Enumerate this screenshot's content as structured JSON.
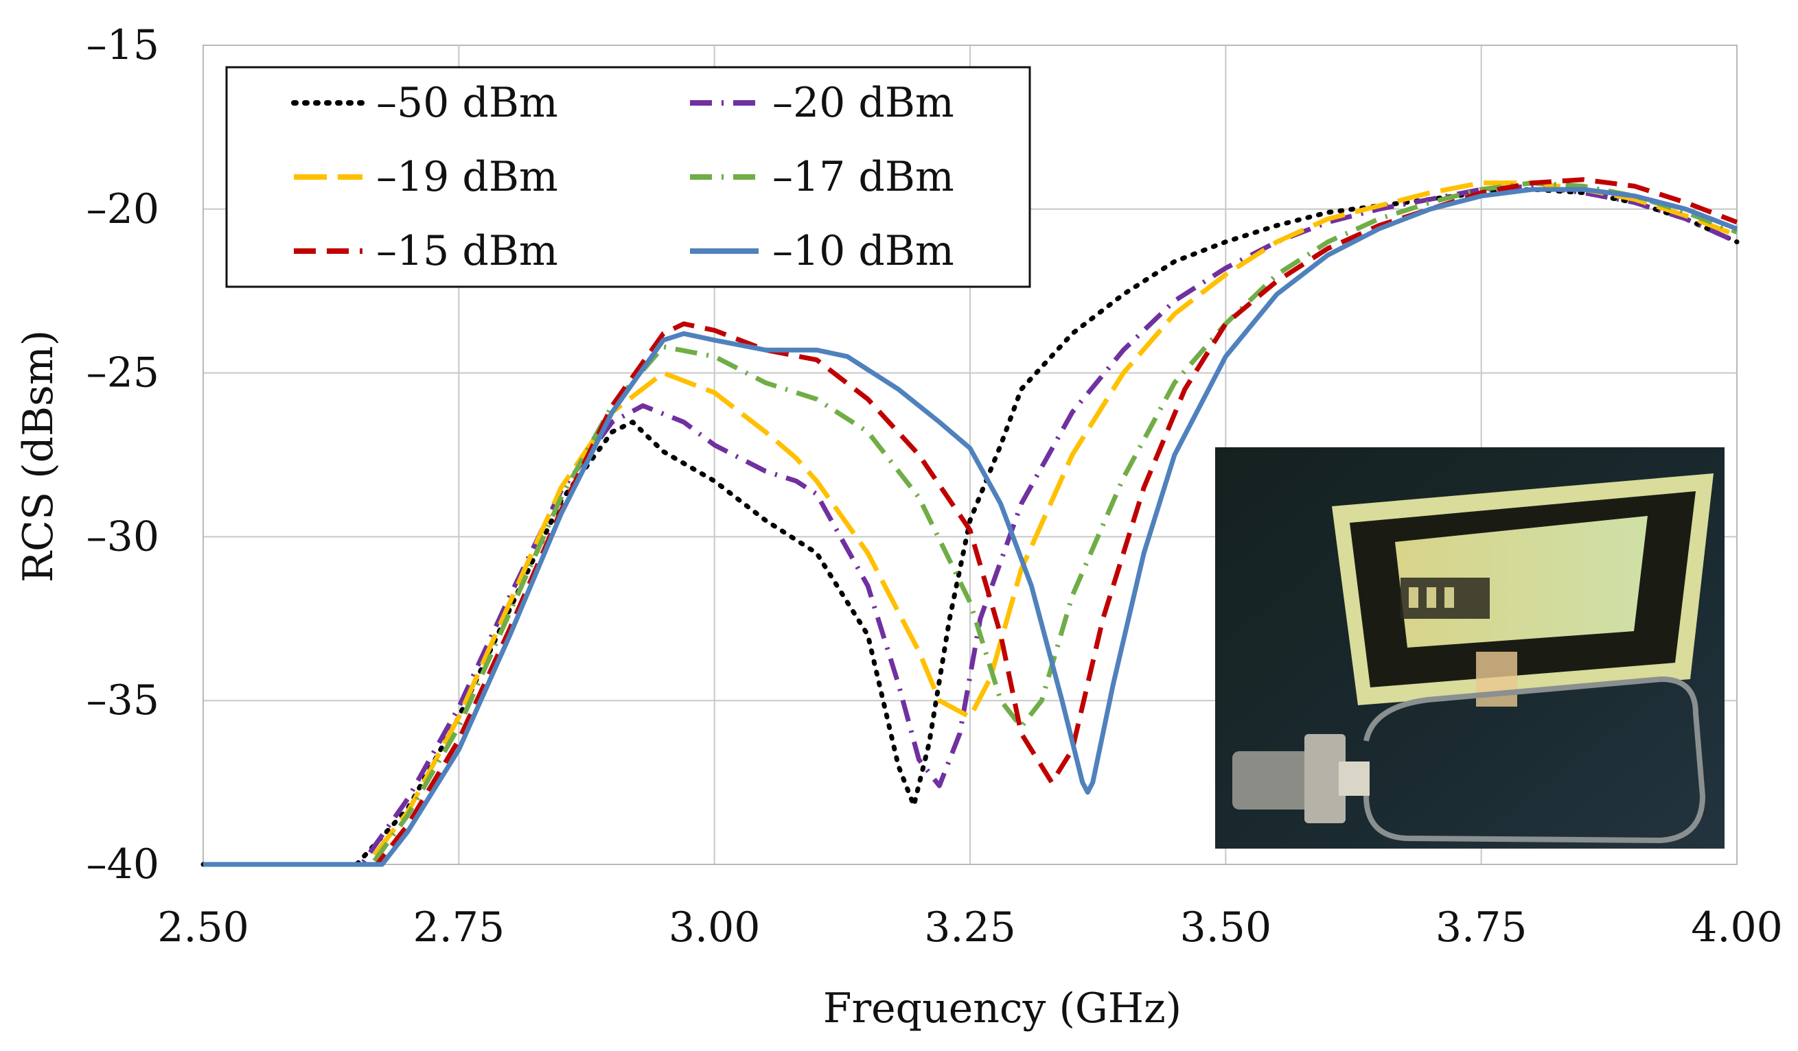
{
  "chart_data": {
    "type": "line",
    "title": "",
    "xlabel": "Frequency (GHz)",
    "ylabel": "RCS (dBsm)",
    "xlim": [
      2.5,
      4.0
    ],
    "ylim": [
      -40,
      -15
    ],
    "x_ticks": [
      2.5,
      2.75,
      3.0,
      3.25,
      3.5,
      3.75,
      4.0
    ],
    "x_tick_labels": [
      "2.50",
      "2.75",
      "3.00",
      "3.25",
      "3.50",
      "3.75",
      "4.00"
    ],
    "y_ticks": [
      -15,
      -20,
      -25,
      -30,
      -35,
      -40
    ],
    "y_tick_labels": [
      "–15",
      "–20",
      "–25",
      "–30",
      "–35",
      "–40"
    ],
    "grid": true,
    "legend_position": "top-left",
    "series": [
      {
        "name": "–50 dBm",
        "color": "#000000",
        "dash": "dot",
        "points": [
          [
            2.5,
            -40
          ],
          [
            2.65,
            -40
          ],
          [
            2.7,
            -38.3
          ],
          [
            2.75,
            -35.5
          ],
          [
            2.8,
            -32.2
          ],
          [
            2.85,
            -28.9
          ],
          [
            2.9,
            -26.8
          ],
          [
            2.92,
            -26.5
          ],
          [
            2.95,
            -27.4
          ],
          [
            3.0,
            -28.3
          ],
          [
            3.05,
            -29.5
          ],
          [
            3.1,
            -30.5
          ],
          [
            3.15,
            -33.0
          ],
          [
            3.18,
            -37.0
          ],
          [
            3.195,
            -38.2
          ],
          [
            3.21,
            -36.3
          ],
          [
            3.23,
            -32.5
          ],
          [
            3.25,
            -29.5
          ],
          [
            3.28,
            -27.2
          ],
          [
            3.3,
            -25.5
          ],
          [
            3.35,
            -23.8
          ],
          [
            3.4,
            -22.6
          ],
          [
            3.45,
            -21.6
          ],
          [
            3.5,
            -21.0
          ],
          [
            3.55,
            -20.5
          ],
          [
            3.6,
            -20.1
          ],
          [
            3.65,
            -19.9
          ],
          [
            3.7,
            -19.7
          ],
          [
            3.75,
            -19.5
          ],
          [
            3.8,
            -19.4
          ],
          [
            3.85,
            -19.5
          ],
          [
            3.9,
            -19.8
          ],
          [
            3.95,
            -20.3
          ],
          [
            4.0,
            -21.0
          ]
        ]
      },
      {
        "name": "–20 dBm",
        "color": "#7030a0",
        "dash": "dashdot",
        "points": [
          [
            2.5,
            -40
          ],
          [
            2.655,
            -40
          ],
          [
            2.7,
            -38.0
          ],
          [
            2.75,
            -35.2
          ],
          [
            2.8,
            -31.8
          ],
          [
            2.85,
            -28.6
          ],
          [
            2.9,
            -26.5
          ],
          [
            2.93,
            -26.0
          ],
          [
            2.97,
            -26.5
          ],
          [
            3.0,
            -27.2
          ],
          [
            3.05,
            -28.0
          ],
          [
            3.08,
            -28.3
          ],
          [
            3.1,
            -28.7
          ],
          [
            3.15,
            -31.5
          ],
          [
            3.18,
            -34.5
          ],
          [
            3.2,
            -36.8
          ],
          [
            3.22,
            -37.6
          ],
          [
            3.24,
            -36.0
          ],
          [
            3.26,
            -32.5
          ],
          [
            3.3,
            -29.0
          ],
          [
            3.35,
            -26.2
          ],
          [
            3.4,
            -24.3
          ],
          [
            3.45,
            -22.8
          ],
          [
            3.5,
            -21.8
          ],
          [
            3.55,
            -21.0
          ],
          [
            3.6,
            -20.4
          ],
          [
            3.65,
            -20.0
          ],
          [
            3.7,
            -19.7
          ],
          [
            3.75,
            -19.4
          ],
          [
            3.8,
            -19.3
          ],
          [
            3.85,
            -19.5
          ],
          [
            3.9,
            -19.8
          ],
          [
            3.95,
            -20.3
          ],
          [
            4.0,
            -21.0
          ]
        ]
      },
      {
        "name": "–19 dBm",
        "color": "#ffc000",
        "dash": "longdash",
        "points": [
          [
            2.5,
            -40
          ],
          [
            2.66,
            -40
          ],
          [
            2.7,
            -38.4
          ],
          [
            2.75,
            -35.5
          ],
          [
            2.8,
            -32.0
          ],
          [
            2.85,
            -28.5
          ],
          [
            2.9,
            -26.2
          ],
          [
            2.95,
            -25.0
          ],
          [
            3.0,
            -25.6
          ],
          [
            3.05,
            -26.8
          ],
          [
            3.08,
            -27.6
          ],
          [
            3.1,
            -28.3
          ],
          [
            3.15,
            -30.5
          ],
          [
            3.2,
            -33.5
          ],
          [
            3.22,
            -35.0
          ],
          [
            3.25,
            -35.5
          ],
          [
            3.27,
            -34.3
          ],
          [
            3.3,
            -31.0
          ],
          [
            3.35,
            -27.5
          ],
          [
            3.4,
            -25.0
          ],
          [
            3.45,
            -23.2
          ],
          [
            3.5,
            -22.0
          ],
          [
            3.55,
            -21.0
          ],
          [
            3.6,
            -20.3
          ],
          [
            3.65,
            -19.9
          ],
          [
            3.7,
            -19.5
          ],
          [
            3.75,
            -19.2
          ],
          [
            3.8,
            -19.2
          ],
          [
            3.85,
            -19.4
          ],
          [
            3.9,
            -19.7
          ],
          [
            3.95,
            -20.2
          ],
          [
            4.0,
            -20.8
          ]
        ]
      },
      {
        "name": "–17 dBm",
        "color": "#70ad47",
        "dash": "dashdot",
        "points": [
          [
            2.5,
            -40
          ],
          [
            2.665,
            -40
          ],
          [
            2.7,
            -38.5
          ],
          [
            2.75,
            -35.8
          ],
          [
            2.8,
            -32.3
          ],
          [
            2.85,
            -28.8
          ],
          [
            2.9,
            -26.0
          ],
          [
            2.95,
            -24.2
          ],
          [
            3.0,
            -24.5
          ],
          [
            3.05,
            -25.3
          ],
          [
            3.1,
            -25.8
          ],
          [
            3.15,
            -26.8
          ],
          [
            3.2,
            -28.8
          ],
          [
            3.25,
            -32.0
          ],
          [
            3.28,
            -35.0
          ],
          [
            3.3,
            -35.8
          ],
          [
            3.32,
            -35.0
          ],
          [
            3.35,
            -31.8
          ],
          [
            3.4,
            -28.2
          ],
          [
            3.45,
            -25.3
          ],
          [
            3.5,
            -23.5
          ],
          [
            3.55,
            -22.0
          ],
          [
            3.6,
            -21.0
          ],
          [
            3.65,
            -20.3
          ],
          [
            3.7,
            -19.8
          ],
          [
            3.75,
            -19.4
          ],
          [
            3.8,
            -19.2
          ],
          [
            3.85,
            -19.3
          ],
          [
            3.9,
            -19.6
          ],
          [
            3.95,
            -20.1
          ],
          [
            4.0,
            -20.7
          ]
        ]
      },
      {
        "name": "–15 dBm",
        "color": "#c00000",
        "dash": "dash",
        "points": [
          [
            2.5,
            -40
          ],
          [
            2.67,
            -40
          ],
          [
            2.7,
            -38.8
          ],
          [
            2.75,
            -36.2
          ],
          [
            2.8,
            -32.8
          ],
          [
            2.85,
            -29.2
          ],
          [
            2.9,
            -26.0
          ],
          [
            2.95,
            -23.8
          ],
          [
            2.97,
            -23.5
          ],
          [
            3.0,
            -23.7
          ],
          [
            3.05,
            -24.3
          ],
          [
            3.1,
            -24.6
          ],
          [
            3.15,
            -25.8
          ],
          [
            3.2,
            -27.5
          ],
          [
            3.25,
            -29.8
          ],
          [
            3.28,
            -33.0
          ],
          [
            3.3,
            -36.0
          ],
          [
            3.33,
            -37.5
          ],
          [
            3.35,
            -36.5
          ],
          [
            3.38,
            -32.5
          ],
          [
            3.42,
            -28.5
          ],
          [
            3.46,
            -25.5
          ],
          [
            3.5,
            -23.5
          ],
          [
            3.55,
            -22.2
          ],
          [
            3.6,
            -21.2
          ],
          [
            3.65,
            -20.5
          ],
          [
            3.7,
            -20.0
          ],
          [
            3.75,
            -19.5
          ],
          [
            3.8,
            -19.2
          ],
          [
            3.85,
            -19.1
          ],
          [
            3.9,
            -19.3
          ],
          [
            3.95,
            -19.8
          ],
          [
            4.0,
            -20.4
          ]
        ]
      },
      {
        "name": "–10 dBm",
        "color": "#4f81bd",
        "dash": "solid",
        "points": [
          [
            2.5,
            -40
          ],
          [
            2.675,
            -40
          ],
          [
            2.7,
            -39.0
          ],
          [
            2.75,
            -36.5
          ],
          [
            2.8,
            -33.0
          ],
          [
            2.85,
            -29.3
          ],
          [
            2.9,
            -26.2
          ],
          [
            2.95,
            -24.0
          ],
          [
            2.97,
            -23.8
          ],
          [
            3.0,
            -24.0
          ],
          [
            3.05,
            -24.3
          ],
          [
            3.1,
            -24.3
          ],
          [
            3.13,
            -24.5
          ],
          [
            3.18,
            -25.5
          ],
          [
            3.22,
            -26.5
          ],
          [
            3.25,
            -27.3
          ],
          [
            3.28,
            -29.0
          ],
          [
            3.31,
            -31.5
          ],
          [
            3.34,
            -35.0
          ],
          [
            3.36,
            -37.5
          ],
          [
            3.365,
            -37.8
          ],
          [
            3.37,
            -37.5
          ],
          [
            3.39,
            -34.5
          ],
          [
            3.42,
            -30.5
          ],
          [
            3.45,
            -27.5
          ],
          [
            3.5,
            -24.5
          ],
          [
            3.55,
            -22.6
          ],
          [
            3.6,
            -21.4
          ],
          [
            3.65,
            -20.6
          ],
          [
            3.7,
            -20.0
          ],
          [
            3.75,
            -19.6
          ],
          [
            3.8,
            -19.4
          ],
          [
            3.85,
            -19.4
          ],
          [
            3.9,
            -19.6
          ],
          [
            3.95,
            -20.0
          ],
          [
            4.0,
            -20.6
          ]
        ]
      }
    ]
  }
}
